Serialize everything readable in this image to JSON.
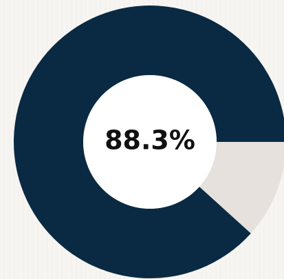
{
  "chart_data": {
    "type": "pie",
    "variant": "donut",
    "title": "",
    "center_label": "88.3%",
    "slices": [
      {
        "name": "",
        "value": 88.3,
        "color": "#092a42"
      },
      {
        "name": "",
        "value": 11.7,
        "color": "#e6e1dc"
      }
    ],
    "start": "right",
    "direction": "counterclockwise"
  },
  "colors": {
    "background": "#f7f5f2",
    "primary": "#092a42",
    "secondary": "#e6e1dc",
    "hole": "#ffffff",
    "label": "#111111"
  }
}
